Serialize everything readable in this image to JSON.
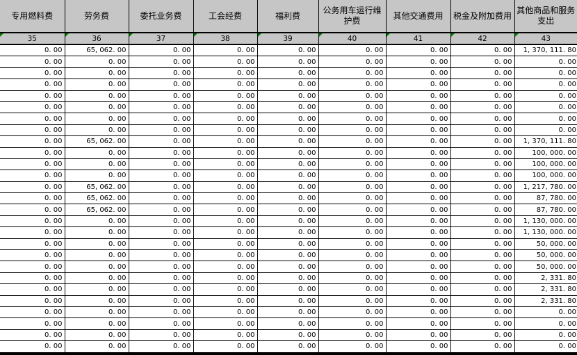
{
  "table": {
    "columns": [
      {
        "label": "专用燃料费",
        "code": "35"
      },
      {
        "label": "劳务费",
        "code": "36"
      },
      {
        "label": "委托业务费",
        "code": "37"
      },
      {
        "label": "工会经费",
        "code": "38"
      },
      {
        "label": "福利费",
        "code": "39"
      },
      {
        "label": "公务用车运行维护费",
        "code": "40"
      },
      {
        "label": "其他交通费用",
        "code": "41"
      },
      {
        "label": "税金及附加费用",
        "code": "42"
      },
      {
        "label": "其他商品和服务支出",
        "code": "43"
      }
    ],
    "rows": [
      [
        "0.00",
        "65,062.00",
        "0.00",
        "0.00",
        "0.00",
        "0.00",
        "0.00",
        "0.00",
        "1,370,111.80"
      ],
      [
        "0.00",
        "0.00",
        "0.00",
        "0.00",
        "0.00",
        "0.00",
        "0.00",
        "0.00",
        "0.00"
      ],
      [
        "0.00",
        "0.00",
        "0.00",
        "0.00",
        "0.00",
        "0.00",
        "0.00",
        "0.00",
        "0.00"
      ],
      [
        "0.00",
        "0.00",
        "0.00",
        "0.00",
        "0.00",
        "0.00",
        "0.00",
        "0.00",
        "0.00"
      ],
      [
        "0.00",
        "0.00",
        "0.00",
        "0.00",
        "0.00",
        "0.00",
        "0.00",
        "0.00",
        "0.00"
      ],
      [
        "0.00",
        "0.00",
        "0.00",
        "0.00",
        "0.00",
        "0.00",
        "0.00",
        "0.00",
        "0.00"
      ],
      [
        "0.00",
        "0.00",
        "0.00",
        "0.00",
        "0.00",
        "0.00",
        "0.00",
        "0.00",
        "0.00"
      ],
      [
        "0.00",
        "0.00",
        "0.00",
        "0.00",
        "0.00",
        "0.00",
        "0.00",
        "0.00",
        "0.00"
      ],
      [
        "0.00",
        "65,062.00",
        "0.00",
        "0.00",
        "0.00",
        "0.00",
        "0.00",
        "0.00",
        "1,370,111.80"
      ],
      [
        "0.00",
        "0.00",
        "0.00",
        "0.00",
        "0.00",
        "0.00",
        "0.00",
        "0.00",
        "100,000.00"
      ],
      [
        "0.00",
        "0.00",
        "0.00",
        "0.00",
        "0.00",
        "0.00",
        "0.00",
        "0.00",
        "100,000.00"
      ],
      [
        "0.00",
        "0.00",
        "0.00",
        "0.00",
        "0.00",
        "0.00",
        "0.00",
        "0.00",
        "100,000.00"
      ],
      [
        "0.00",
        "65,062.00",
        "0.00",
        "0.00",
        "0.00",
        "0.00",
        "0.00",
        "0.00",
        "1,217,780.00"
      ],
      [
        "0.00",
        "65,062.00",
        "0.00",
        "0.00",
        "0.00",
        "0.00",
        "0.00",
        "0.00",
        "87,780.00"
      ],
      [
        "0.00",
        "65,062.00",
        "0.00",
        "0.00",
        "0.00",
        "0.00",
        "0.00",
        "0.00",
        "87,780.00"
      ],
      [
        "0.00",
        "0.00",
        "0.00",
        "0.00",
        "0.00",
        "0.00",
        "0.00",
        "0.00",
        "1,130,000.00"
      ],
      [
        "0.00",
        "0.00",
        "0.00",
        "0.00",
        "0.00",
        "0.00",
        "0.00",
        "0.00",
        "1,130,000.00"
      ],
      [
        "0.00",
        "0.00",
        "0.00",
        "0.00",
        "0.00",
        "0.00",
        "0.00",
        "0.00",
        "50,000.00"
      ],
      [
        "0.00",
        "0.00",
        "0.00",
        "0.00",
        "0.00",
        "0.00",
        "0.00",
        "0.00",
        "50,000.00"
      ],
      [
        "0.00",
        "0.00",
        "0.00",
        "0.00",
        "0.00",
        "0.00",
        "0.00",
        "0.00",
        "50,000.00"
      ],
      [
        "0.00",
        "0.00",
        "0.00",
        "0.00",
        "0.00",
        "0.00",
        "0.00",
        "0.00",
        "2,331.80"
      ],
      [
        "0.00",
        "0.00",
        "0.00",
        "0.00",
        "0.00",
        "0.00",
        "0.00",
        "0.00",
        "2,331.80"
      ],
      [
        "0.00",
        "0.00",
        "0.00",
        "0.00",
        "0.00",
        "0.00",
        "0.00",
        "0.00",
        "2,331.80"
      ],
      [
        "0.00",
        "0.00",
        "0.00",
        "0.00",
        "0.00",
        "0.00",
        "0.00",
        "0.00",
        "0.00"
      ],
      [
        "0.00",
        "0.00",
        "0.00",
        "0.00",
        "0.00",
        "0.00",
        "0.00",
        "0.00",
        "0.00"
      ],
      [
        "0.00",
        "0.00",
        "0.00",
        "0.00",
        "0.00",
        "0.00",
        "0.00",
        "0.00",
        "0.00"
      ],
      [
        "0.00",
        "0.00",
        "0.00",
        "0.00",
        "0.00",
        "0.00",
        "0.00",
        "0.00",
        "0.00"
      ]
    ]
  },
  "colors": {
    "header_bg": "#c6c6c6",
    "grid_line": "#000000",
    "cell_bg": "#ffffff",
    "error_indicator_green": "#007d00"
  }
}
